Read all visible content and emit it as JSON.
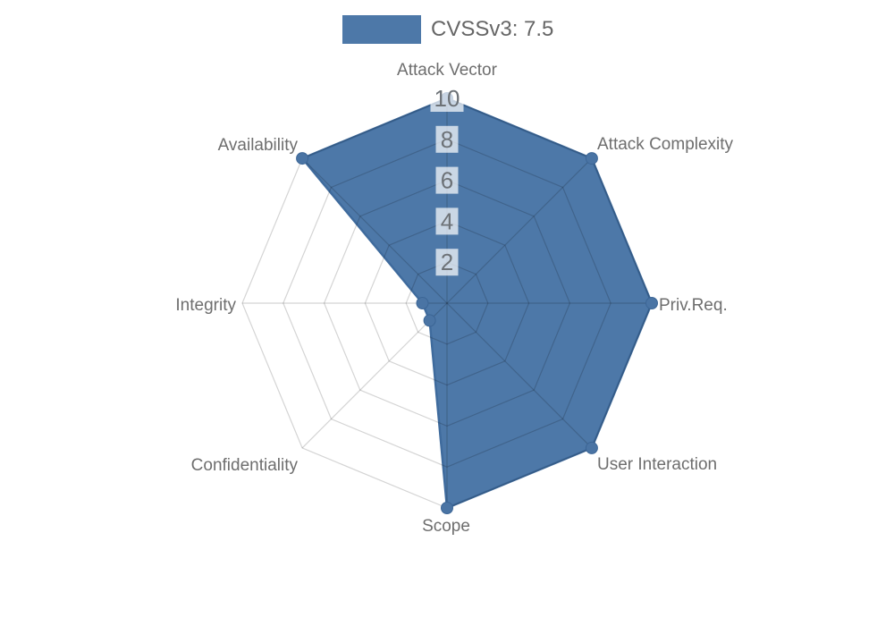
{
  "chart_data": {
    "type": "radar",
    "categories": [
      "Attack Vector",
      "Attack Complexity",
      "Priv.Req.",
      "User Interaction",
      "Scope",
      "Confidentiality",
      "Integrity",
      "Availability"
    ],
    "series": [
      {
        "name": "CVSSv3: 7.5",
        "values": [
          10,
          10,
          10,
          10,
          10,
          1.2,
          1.2,
          10
        ]
      }
    ],
    "scale": {
      "min": 0,
      "max": 10,
      "tick_step": 2,
      "tick_labels": [
        "2",
        "4",
        "6",
        "8",
        "10"
      ]
    },
    "legend_position": "top",
    "grid": true,
    "grid_shape": "polygon",
    "colors": {
      "series_fill": "#4d78a8",
      "series_border": "#3f6b9d",
      "marker_fill": "#4a74a4",
      "marker_border": "#3c6696",
      "grid_line": "rgba(0,0,0,0.17)",
      "tick_backdrop": "rgba(255,255,255,0.7)",
      "tick_text": "#6d7277",
      "axis_label_text": "#6e6e6e",
      "legend_text": "#666666",
      "background": "#ffffff"
    }
  }
}
